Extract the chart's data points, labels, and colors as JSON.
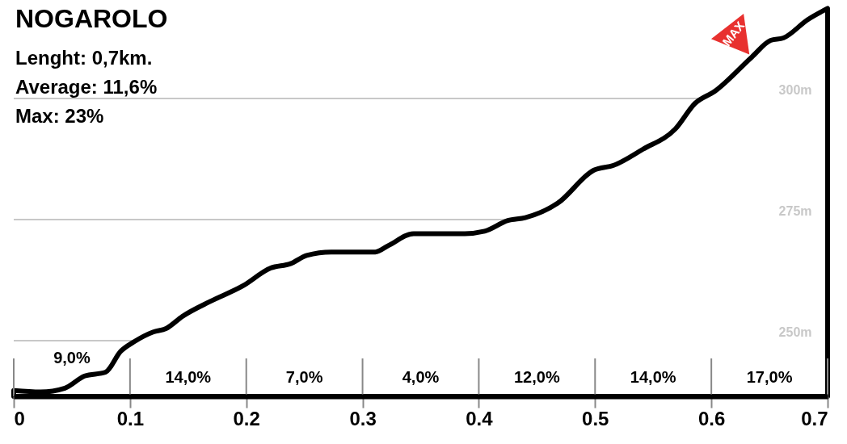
{
  "chart_data": {
    "type": "area",
    "title": "NOGAROLO",
    "subtitle": "Lenght: 0,7km.\nAverage: 11,6%\nMax: 23%",
    "x": [
      0,
      0.023,
      0.044,
      0.061,
      0.079,
      0.092,
      0.103,
      0.12,
      0.131,
      0.145,
      0.169,
      0.197,
      0.221,
      0.238,
      0.252,
      0.273,
      0.311,
      0.322,
      0.344,
      0.388,
      0.405,
      0.425,
      0.44,
      0.468,
      0.499,
      0.516,
      0.541,
      0.569,
      0.586,
      0.603,
      0.635,
      0.651,
      0.662,
      0.683,
      0.7
    ],
    "series": [
      {
        "color": "#000000",
        "values": [
          239.7,
          239.4,
          240.2,
          242.7,
          243.5,
          247.8,
          249.7,
          251.8,
          252.5,
          255,
          258.1,
          261.3,
          265,
          265.9,
          267.6,
          268.3,
          268.3,
          269.6,
          272.1,
          272.1,
          272.6,
          274.8,
          275.4,
          278.4,
          285.2,
          286.2,
          289.5,
          293.7,
          299,
          301.5,
          308.6,
          312,
          312.5,
          316.3,
          318.6
        ]
      }
    ],
    "xlim": [
      0,
      0.7
    ],
    "xticks": [
      0,
      0.1,
      0.2,
      0.3,
      0.4,
      0.5,
      0.6,
      0.7
    ],
    "ylim": [
      238.5,
      320
    ],
    "yticks": [
      {
        "value": 250,
        "label": "250m"
      },
      {
        "value": 275,
        "label": "275m"
      },
      {
        "value": 300,
        "label": "300m"
      }
    ],
    "grid": "y",
    "annotations": [
      "9,0%",
      "14,0%",
      "7,0%",
      "4,0%",
      "12,0%",
      "14,0%",
      "17,0%",
      {
        "text": "MAX",
        "x": 0.633,
        "y": 309
      }
    ]
  }
}
